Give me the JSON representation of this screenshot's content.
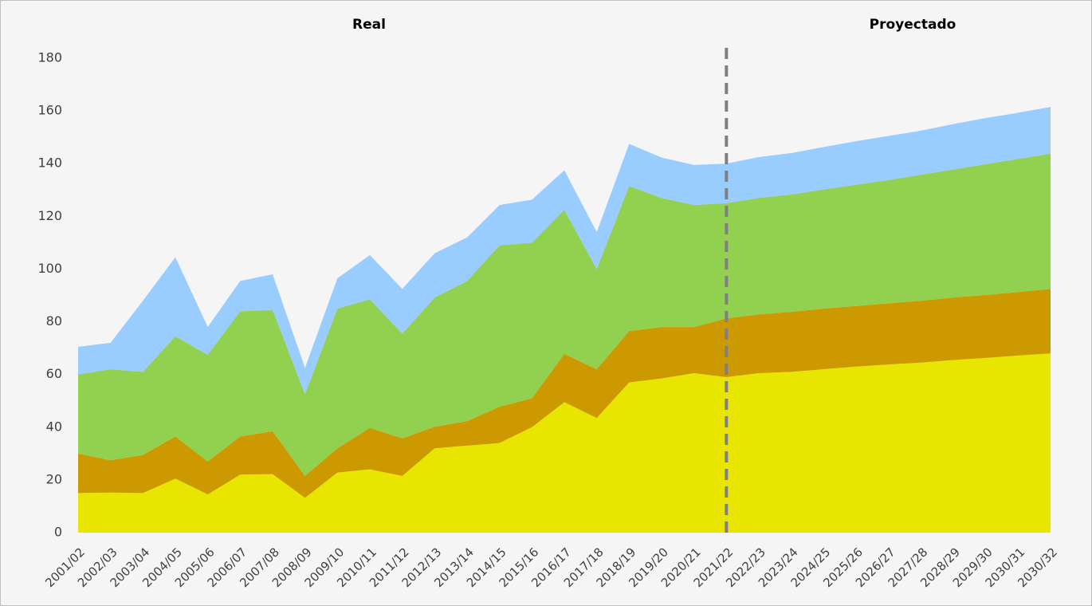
{
  "chart_data": {
    "type": "stacked_area",
    "annotations": [
      "Real",
      "Proyectado"
    ],
    "divider": "2021/22",
    "categories": [
      "2001/02",
      "2002/03",
      "2003/04",
      "2004/05",
      "2005/06",
      "2006/07",
      "2007/08",
      "2008/09",
      "2009/10",
      "2010/11",
      "2011/12",
      "2012/13",
      "2013/14",
      "2014/15",
      "2015/16",
      "2016/17",
      "2017/18",
      "2018/19",
      "2019/20",
      "2020/21",
      "2021/22",
      "2022/23",
      "2023/24",
      "2024/25",
      "2025/26",
      "2026/27",
      "2027/28",
      "2028/29",
      "2029/30",
      "2030/31",
      "2030/32"
    ],
    "series": [
      {
        "color": "#e8e600",
        "values": [
          15,
          15.2,
          15,
          20.5,
          14.5,
          22,
          22.2,
          13.2,
          22.8,
          24,
          21.5,
          32,
          33,
          34,
          40,
          49.5,
          43.5,
          57,
          58.5,
          60.5,
          59,
          60.5,
          61,
          62,
          63,
          63.8,
          64.5,
          65.5,
          66.3,
          67.2,
          68
        ]
      },
      {
        "color": "#cc9900",
        "values": [
          15,
          12.3,
          14.5,
          16,
          12.5,
          14.5,
          16.3,
          8.3,
          9.2,
          15.8,
          14.3,
          8.2,
          9.3,
          13.8,
          11,
          18.3,
          18.5,
          19.5,
          19.5,
          17.5,
          22.3,
          22.3,
          22.8,
          23,
          23,
          23.2,
          23.5,
          23.7,
          23.9,
          24.1,
          24.5
        ]
      },
      {
        "color": "#92d050",
        "values": [
          30,
          34.5,
          31.5,
          38,
          40.5,
          47.5,
          46,
          31,
          53,
          48.7,
          39.7,
          49,
          53.2,
          61.2,
          59,
          54.7,
          38,
          55,
          49,
          46.3,
          43.7,
          44.2,
          44.5,
          45.2,
          46,
          46.8,
          47.8,
          48.6,
          49.6,
          50.5,
          51.3
        ]
      },
      {
        "color": "#99ccff",
        "values": [
          10.5,
          10,
          27,
          30,
          10.5,
          11.5,
          13.5,
          10,
          11.5,
          16.8,
          17,
          16.8,
          16.5,
          15.3,
          16.3,
          15,
          14,
          16,
          15.3,
          15.2,
          15,
          15.5,
          15.7,
          16.1,
          16.5,
          16.7,
          16.7,
          17.2,
          17.5,
          17.5,
          17.7
        ]
      }
    ],
    "ylim": [
      0,
      180
    ],
    "yticks": [
      0,
      20,
      40,
      60,
      80,
      100,
      120,
      140,
      160,
      180
    ],
    "grid": false
  }
}
